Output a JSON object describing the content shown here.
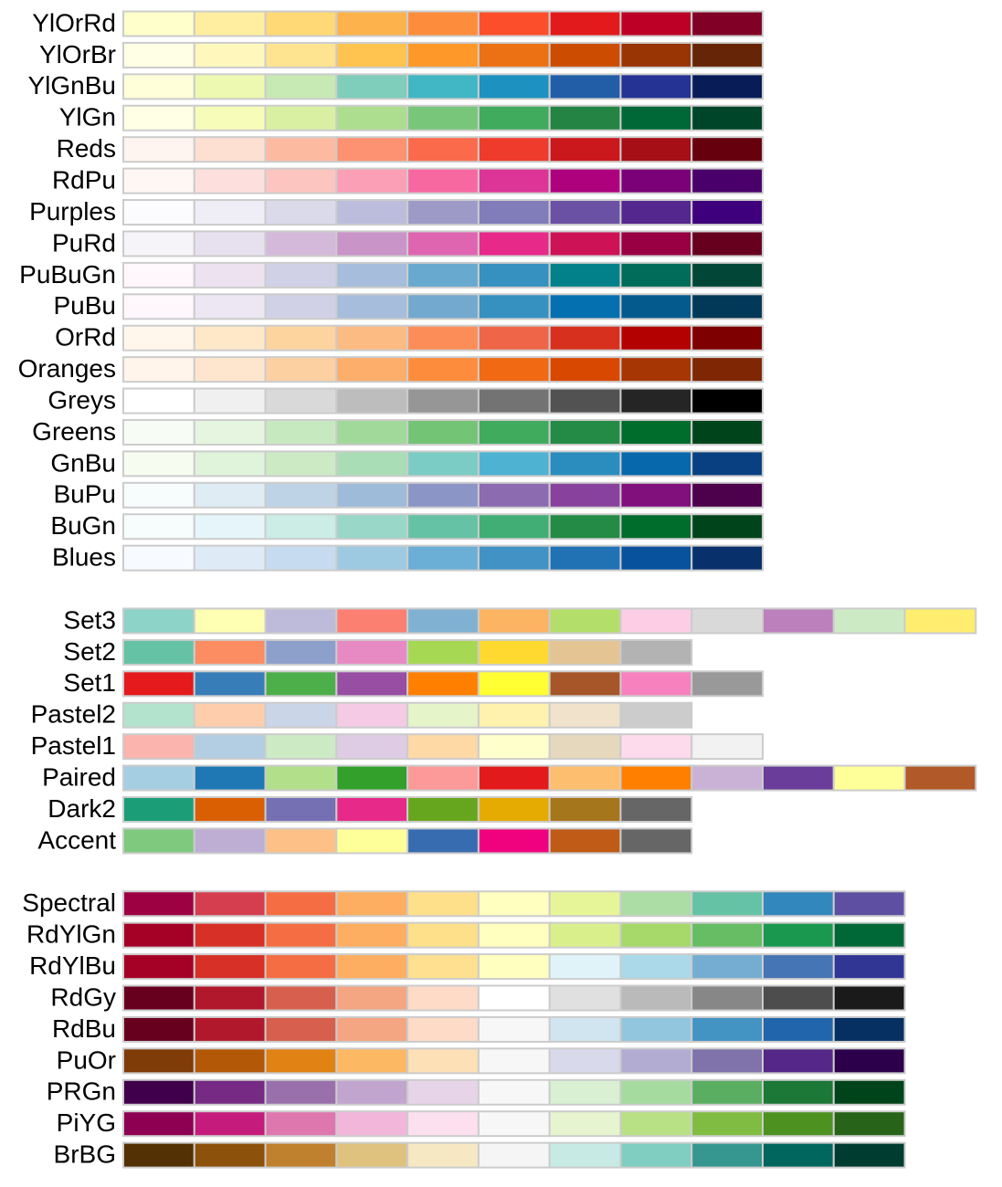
{
  "groups": [
    {
      "palettes": [
        {
          "name": "YlOrRd",
          "colors": [
            "#FFFFCC",
            "#FFEDA0",
            "#FED976",
            "#FEB24C",
            "#FD8D3C",
            "#FC4E2A",
            "#E31A1C",
            "#BD0026",
            "#800026"
          ]
        },
        {
          "name": "YlOrBr",
          "colors": [
            "#FFFFE5",
            "#FFF7BC",
            "#FEE391",
            "#FEC44F",
            "#FE9929",
            "#EC7014",
            "#CC4C02",
            "#993404",
            "#662506"
          ]
        },
        {
          "name": "YlGnBu",
          "colors": [
            "#FFFFD9",
            "#EDF8B1",
            "#C7E9B4",
            "#7FCDBB",
            "#41B6C4",
            "#1D91C0",
            "#225EA8",
            "#253494",
            "#081D58"
          ]
        },
        {
          "name": "YlGn",
          "colors": [
            "#FFFFE5",
            "#F7FCB9",
            "#D9F0A3",
            "#ADDD8E",
            "#78C679",
            "#41AB5D",
            "#238443",
            "#006837",
            "#004529"
          ]
        },
        {
          "name": "Reds",
          "colors": [
            "#FFF5F0",
            "#FEE0D2",
            "#FCBBA1",
            "#FC9272",
            "#FB6A4A",
            "#EF3B2C",
            "#CB181D",
            "#A50F15",
            "#67000D"
          ]
        },
        {
          "name": "RdPu",
          "colors": [
            "#FFF7F3",
            "#FDE0DD",
            "#FCC5C0",
            "#FA9FB5",
            "#F768A1",
            "#DD3497",
            "#AE017E",
            "#7A0177",
            "#49006A"
          ]
        },
        {
          "name": "Purples",
          "colors": [
            "#FCFBFD",
            "#EFEDF5",
            "#DADAEB",
            "#BCBDDC",
            "#9E9AC8",
            "#807DBA",
            "#6A51A3",
            "#54278F",
            "#3F007D"
          ]
        },
        {
          "name": "PuRd",
          "colors": [
            "#F7F4F9",
            "#E7E1EF",
            "#D4B9DA",
            "#C994C7",
            "#DF65B0",
            "#E7298A",
            "#CE1256",
            "#980043",
            "#67001F"
          ]
        },
        {
          "name": "PuBuGn",
          "colors": [
            "#FFF7FB",
            "#ECE2F0",
            "#D0D1E6",
            "#A6BDDB",
            "#67A9CF",
            "#3690C0",
            "#02818A",
            "#016C59",
            "#014636"
          ]
        },
        {
          "name": "PuBu",
          "colors": [
            "#FFF7FB",
            "#ECE7F2",
            "#D0D1E6",
            "#A6BDDB",
            "#74A9CF",
            "#3690C0",
            "#0570B0",
            "#045A8D",
            "#023858"
          ]
        },
        {
          "name": "OrRd",
          "colors": [
            "#FFF7EC",
            "#FEE8C8",
            "#FDD49E",
            "#FDBB84",
            "#FC8D59",
            "#EF6548",
            "#D7301F",
            "#B30000",
            "#7F0000"
          ]
        },
        {
          "name": "Oranges",
          "colors": [
            "#FFF5EB",
            "#FEE6CE",
            "#FDD0A2",
            "#FDAE6B",
            "#FD8D3C",
            "#F16913",
            "#D94801",
            "#A63603",
            "#7F2704"
          ]
        },
        {
          "name": "Greys",
          "colors": [
            "#FFFFFF",
            "#F0F0F0",
            "#D9D9D9",
            "#BDBDBD",
            "#969696",
            "#737373",
            "#525252",
            "#252525",
            "#000000"
          ]
        },
        {
          "name": "Greens",
          "colors": [
            "#F7FCF5",
            "#E5F5E0",
            "#C7E9C0",
            "#A1D99B",
            "#74C476",
            "#41AB5D",
            "#238B45",
            "#006D2C",
            "#00441B"
          ]
        },
        {
          "name": "GnBu",
          "colors": [
            "#F7FCF0",
            "#E0F3DB",
            "#CCEBC5",
            "#A8DDB5",
            "#7BCCC4",
            "#4EB3D3",
            "#2B8CBE",
            "#0868AC",
            "#084081"
          ]
        },
        {
          "name": "BuPu",
          "colors": [
            "#F7FCFD",
            "#E0ECF4",
            "#BFD3E6",
            "#9EBCDA",
            "#8C96C6",
            "#8C6BB1",
            "#88419D",
            "#810F7C",
            "#4D004B"
          ]
        },
        {
          "name": "BuGn",
          "colors": [
            "#F7FCFD",
            "#E5F5F9",
            "#CCECE6",
            "#99D8C9",
            "#66C2A4",
            "#41AE76",
            "#238B45",
            "#006D2C",
            "#00441B"
          ]
        },
        {
          "name": "Blues",
          "colors": [
            "#F7FBFF",
            "#DEEBF7",
            "#C6DBEF",
            "#9ECAE1",
            "#6BAED6",
            "#4292C6",
            "#2171B5",
            "#08519C",
            "#08306B"
          ]
        }
      ]
    },
    {
      "palettes": [
        {
          "name": "Set3",
          "colors": [
            "#8DD3C7",
            "#FFFFB3",
            "#BEBADA",
            "#FB8072",
            "#80B1D3",
            "#FDB462",
            "#B3DE69",
            "#FCCDE5",
            "#D9D9D9",
            "#BC80BD",
            "#CCEBC5",
            "#FFED6F"
          ]
        },
        {
          "name": "Set2",
          "colors": [
            "#66C2A5",
            "#FC8D62",
            "#8DA0CB",
            "#E78AC3",
            "#A6D854",
            "#FFD92F",
            "#E5C494",
            "#B3B3B3"
          ]
        },
        {
          "name": "Set1",
          "colors": [
            "#E41A1C",
            "#377EB8",
            "#4DAF4A",
            "#984EA3",
            "#FF7F00",
            "#FFFF33",
            "#A65628",
            "#F781BF",
            "#999999"
          ]
        },
        {
          "name": "Pastel2",
          "colors": [
            "#B3E2CD",
            "#FDCDAC",
            "#CBD5E8",
            "#F4CAE4",
            "#E6F5C9",
            "#FFF2AE",
            "#F1E2CC",
            "#CCCCCC"
          ]
        },
        {
          "name": "Pastel1",
          "colors": [
            "#FBB4AE",
            "#B3CDE3",
            "#CCEBC5",
            "#DECBE4",
            "#FED9A6",
            "#FFFFCC",
            "#E5D8BD",
            "#FDDAEC",
            "#F2F2F2"
          ]
        },
        {
          "name": "Paired",
          "colors": [
            "#A6CEE3",
            "#1F78B4",
            "#B2DF8A",
            "#33A02C",
            "#FB9A99",
            "#E31A1C",
            "#FDBF6F",
            "#FF7F00",
            "#CAB2D6",
            "#6A3D9A",
            "#FFFF99",
            "#B15928"
          ]
        },
        {
          "name": "Dark2",
          "colors": [
            "#1B9E77",
            "#D95F02",
            "#7570B3",
            "#E7298A",
            "#66A61E",
            "#E6AB02",
            "#A6761D",
            "#666666"
          ]
        },
        {
          "name": "Accent",
          "colors": [
            "#7FC97F",
            "#BEAED4",
            "#FDC086",
            "#FFFF99",
            "#386CB0",
            "#F0027F",
            "#BF5B17",
            "#666666"
          ]
        }
      ]
    },
    {
      "palettes": [
        {
          "name": "Spectral",
          "colors": [
            "#9E0142",
            "#D53E4F",
            "#F46D43",
            "#FDAE61",
            "#FEE08B",
            "#FFFFBF",
            "#E6F598",
            "#ABDDA4",
            "#66C2A5",
            "#3288BD",
            "#5E4FA2"
          ]
        },
        {
          "name": "RdYlGn",
          "colors": [
            "#A50026",
            "#D73027",
            "#F46D43",
            "#FDAE61",
            "#FEE08B",
            "#FFFFBF",
            "#D9EF8B",
            "#A6D96A",
            "#66BD63",
            "#1A9850",
            "#006837"
          ]
        },
        {
          "name": "RdYlBu",
          "colors": [
            "#A50026",
            "#D73027",
            "#F46D43",
            "#FDAE61",
            "#FEE090",
            "#FFFFBF",
            "#E0F3F8",
            "#ABD9E9",
            "#74ADD1",
            "#4575B4",
            "#313695"
          ]
        },
        {
          "name": "RdGy",
          "colors": [
            "#67001F",
            "#B2182B",
            "#D6604D",
            "#F4A582",
            "#FDDBC7",
            "#FFFFFF",
            "#E0E0E0",
            "#BABABA",
            "#878787",
            "#4D4D4D",
            "#1A1A1A"
          ]
        },
        {
          "name": "RdBu",
          "colors": [
            "#67001F",
            "#B2182B",
            "#D6604D",
            "#F4A582",
            "#FDDBC7",
            "#F7F7F7",
            "#D1E5F0",
            "#92C5DE",
            "#4393C3",
            "#2166AC",
            "#053061"
          ]
        },
        {
          "name": "PuOr",
          "colors": [
            "#7F3B08",
            "#B35806",
            "#E08214",
            "#FDB863",
            "#FEE0B6",
            "#F7F7F7",
            "#D8DAEB",
            "#B2ABD2",
            "#8073AC",
            "#542788",
            "#2D004B"
          ]
        },
        {
          "name": "PRGn",
          "colors": [
            "#40004B",
            "#762A83",
            "#9970AB",
            "#C2A5CF",
            "#E7D4E8",
            "#F7F7F7",
            "#D9F0D3",
            "#A6DBA0",
            "#5AAE61",
            "#1B7837",
            "#00441B"
          ]
        },
        {
          "name": "PiYG",
          "colors": [
            "#8E0152",
            "#C51B7D",
            "#DE77AE",
            "#F1B6DA",
            "#FDE0EF",
            "#F7F7F7",
            "#E6F5D0",
            "#B8E186",
            "#7FBC41",
            "#4D9221",
            "#276419"
          ]
        },
        {
          "name": "BrBG",
          "colors": [
            "#543005",
            "#8C510A",
            "#BF812D",
            "#DFC27D",
            "#F6E8C3",
            "#F5F5F5",
            "#C7EAE5",
            "#80CDC1",
            "#35978F",
            "#01665E",
            "#003C30"
          ]
        }
      ]
    }
  ]
}
